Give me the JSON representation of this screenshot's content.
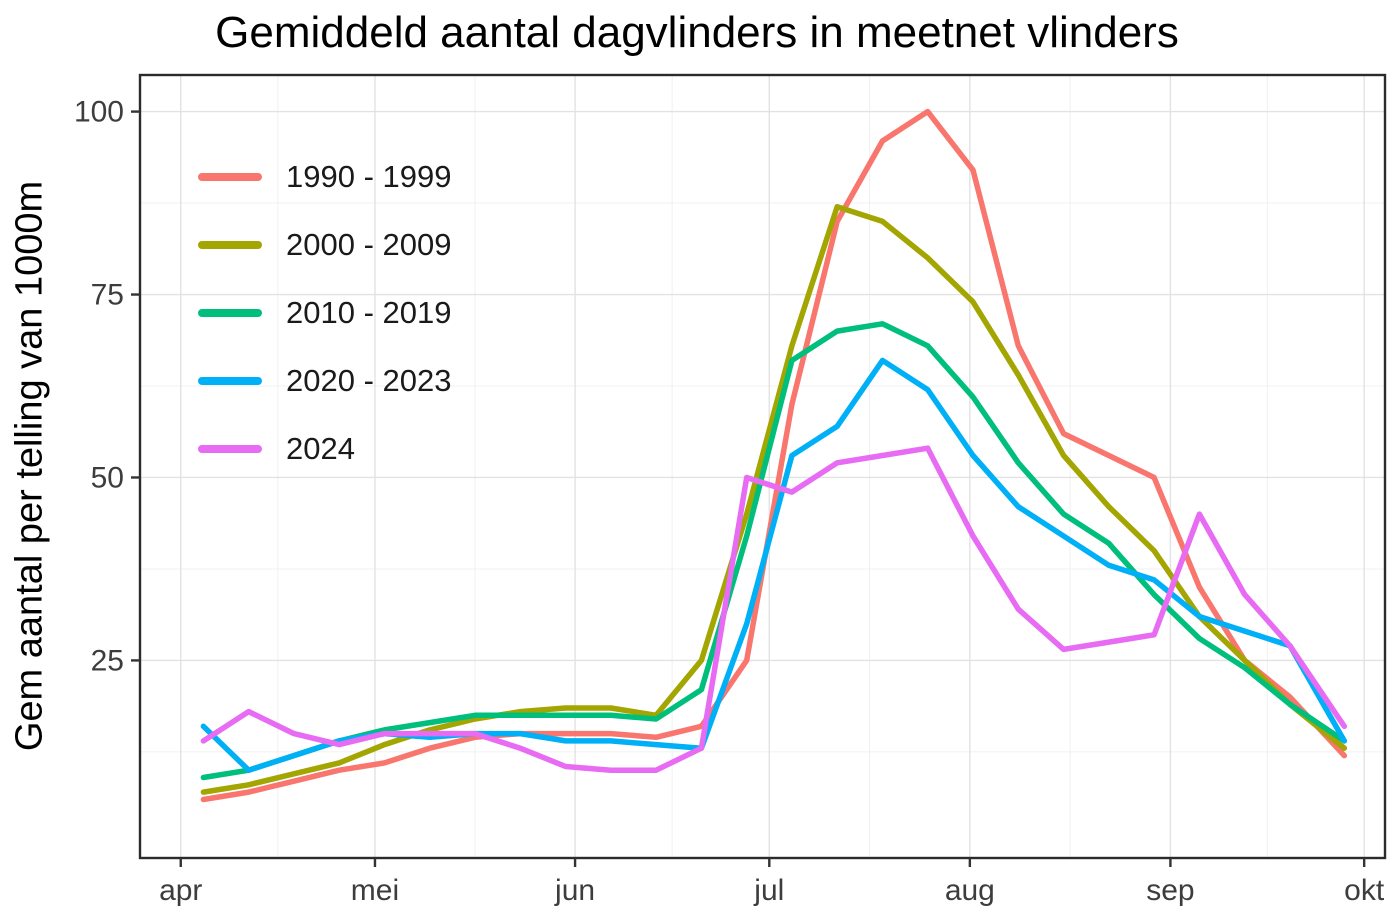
{
  "page": {
    "background": "#ffffff"
  },
  "chart_data": {
    "type": "line",
    "title": "Gemiddeld aantal dagvlinders in meetnet vlinders",
    "xlabel": "",
    "ylabel": "Gem aantal per telling van 1000m",
    "x_unit": "weeks since 1 April, weekly counts",
    "xlim": [
      -0.9,
      26.6
    ],
    "ylim": [
      -2,
      105
    ],
    "grid": true,
    "legend_position": "inside top-left",
    "x_ticks": [
      {
        "pos": 0,
        "label": "apr"
      },
      {
        "pos": 4.29,
        "label": "mei"
      },
      {
        "pos": 8.71,
        "label": "jun"
      },
      {
        "pos": 13.0,
        "label": "jul"
      },
      {
        "pos": 17.43,
        "label": "aug"
      },
      {
        "pos": 21.86,
        "label": "sep"
      },
      {
        "pos": 26.14,
        "label": "okt"
      }
    ],
    "y_ticks": [
      25,
      50,
      75,
      100
    ],
    "x_weeks": [
      0.5,
      1.5,
      2.5,
      3.5,
      4.5,
      5.5,
      6.5,
      7.5,
      8.5,
      9.5,
      10.5,
      11.5,
      12.5,
      13.5,
      14.5,
      15.5,
      16.5,
      17.5,
      18.5,
      19.5,
      20.5,
      21.5,
      22.5,
      23.5,
      24.5,
      25.7
    ],
    "series": [
      {
        "key": "line-1990-1999",
        "name": "1990 - 1999",
        "color": "#F8766D",
        "values": [
          6,
          7,
          8.5,
          10,
          11,
          13,
          14.5,
          15,
          15,
          15,
          14.5,
          16,
          25,
          60,
          85,
          96,
          100,
          92,
          68,
          56,
          53,
          50,
          35,
          25,
          20,
          12
        ]
      },
      {
        "key": "line-2000-2009",
        "name": "2000 - 2009",
        "color": "#A3A500",
        "values": [
          7,
          8,
          9.5,
          11,
          13.5,
          15.5,
          17,
          18,
          18.5,
          18.5,
          17.5,
          25,
          45,
          68,
          87,
          85,
          80,
          74,
          64,
          53,
          46,
          40,
          31,
          25,
          19,
          13
        ]
      },
      {
        "key": "line-2010-2019",
        "name": "2010 - 2019",
        "color": "#00BF7D",
        "values": [
          9,
          10,
          12,
          14,
          15.5,
          16.5,
          17.5,
          17.5,
          17.5,
          17.5,
          17,
          21,
          42,
          66,
          70,
          71,
          68,
          61,
          52,
          45,
          41,
          34,
          28,
          24,
          19,
          14
        ]
      },
      {
        "key": "line-2020-2023",
        "name": "2020 - 2023",
        "color": "#00B0F6",
        "values": [
          16,
          10,
          12,
          14,
          15,
          14.5,
          15,
          15,
          14,
          14,
          13.5,
          13,
          30,
          53,
          57,
          66,
          62,
          53,
          46,
          42,
          38,
          36,
          31,
          29,
          27,
          14
        ]
      },
      {
        "key": "line-2024",
        "name": "2024",
        "color": "#E76BF3",
        "values": [
          14,
          18,
          15,
          13.5,
          15,
          15,
          15,
          13,
          10.5,
          10,
          10,
          13,
          50,
          48,
          52,
          53,
          54,
          42,
          32,
          26.5,
          27.5,
          28.5,
          45,
          34,
          27,
          16
        ]
      }
    ]
  }
}
